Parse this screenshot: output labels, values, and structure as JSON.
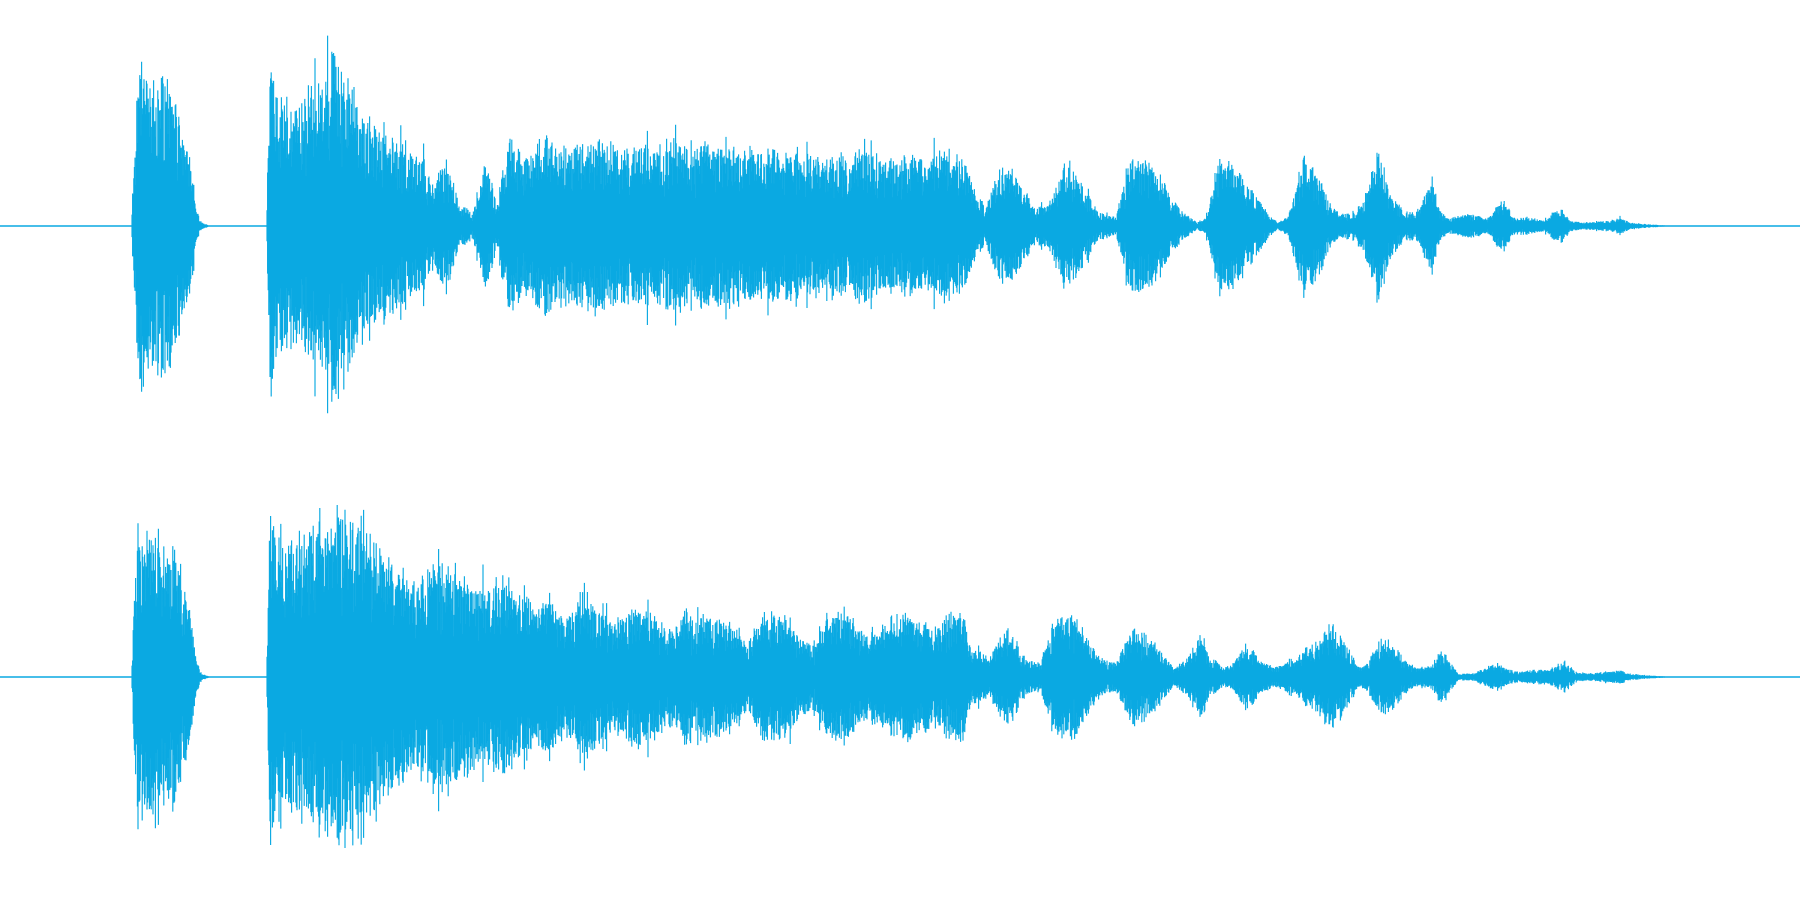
{
  "waveform": {
    "color": "#0aa9e2",
    "channels": [
      {
        "name": "channel-1",
        "envelope": [
          [
            0.0,
            0.0
          ],
          [
            0.073,
            0.0
          ],
          [
            0.0745,
            0.45
          ],
          [
            0.077,
            0.95
          ],
          [
            0.083,
            0.8
          ],
          [
            0.093,
            0.8
          ],
          [
            0.1,
            0.6
          ],
          [
            0.106,
            0.35
          ],
          [
            0.109,
            0.1
          ],
          [
            0.112,
            0.02
          ],
          [
            0.117,
            0.0
          ],
          [
            0.148,
            0.0
          ],
          [
            0.15,
            0.92
          ],
          [
            0.158,
            0.68
          ],
          [
            0.172,
            0.74
          ],
          [
            0.185,
            0.96
          ],
          [
            0.195,
            0.8
          ],
          [
            0.205,
            0.55
          ],
          [
            0.218,
            0.5
          ],
          [
            0.232,
            0.4
          ],
          [
            0.242,
            0.25
          ],
          [
            0.248,
            0.38
          ],
          [
            0.255,
            0.12
          ],
          [
            0.263,
            0.08
          ],
          [
            0.27,
            0.36
          ],
          [
            0.276,
            0.15
          ],
          [
            0.283,
            0.48
          ],
          [
            0.29,
            0.38
          ],
          [
            0.3,
            0.5
          ],
          [
            0.315,
            0.44
          ],
          [
            0.33,
            0.48
          ],
          [
            0.348,
            0.42
          ],
          [
            0.365,
            0.48
          ],
          [
            0.385,
            0.46
          ],
          [
            0.4,
            0.45
          ],
          [
            0.42,
            0.44
          ],
          [
            0.44,
            0.42
          ],
          [
            0.455,
            0.4
          ],
          [
            0.47,
            0.4
          ],
          [
            0.48,
            0.43
          ],
          [
            0.492,
            0.37
          ],
          [
            0.505,
            0.4
          ],
          [
            0.515,
            0.35
          ],
          [
            0.525,
            0.43
          ],
          [
            0.535,
            0.38
          ],
          [
            0.542,
            0.18
          ],
          [
            0.548,
            0.1
          ],
          [
            0.556,
            0.38
          ],
          [
            0.565,
            0.28
          ],
          [
            0.575,
            0.1
          ],
          [
            0.583,
            0.12
          ],
          [
            0.592,
            0.38
          ],
          [
            0.6,
            0.25
          ],
          [
            0.61,
            0.08
          ],
          [
            0.62,
            0.05
          ],
          [
            0.628,
            0.38
          ],
          [
            0.64,
            0.34
          ],
          [
            0.652,
            0.15
          ],
          [
            0.66,
            0.06
          ],
          [
            0.665,
            0.02
          ],
          [
            0.67,
            0.05
          ],
          [
            0.678,
            0.4
          ],
          [
            0.69,
            0.3
          ],
          [
            0.698,
            0.18
          ],
          [
            0.705,
            0.06
          ],
          [
            0.71,
            0.02
          ],
          [
            0.716,
            0.06
          ],
          [
            0.724,
            0.39
          ],
          [
            0.732,
            0.3
          ],
          [
            0.74,
            0.1
          ],
          [
            0.745,
            0.07
          ],
          [
            0.752,
            0.08
          ],
          [
            0.76,
            0.2
          ],
          [
            0.766,
            0.46
          ],
          [
            0.772,
            0.2
          ],
          [
            0.78,
            0.08
          ],
          [
            0.788,
            0.09
          ],
          [
            0.796,
            0.28
          ],
          [
            0.8,
            0.08
          ],
          [
            0.805,
            0.04
          ],
          [
            0.812,
            0.06
          ],
          [
            0.82,
            0.07
          ],
          [
            0.826,
            0.04
          ],
          [
            0.831,
            0.1
          ],
          [
            0.836,
            0.18
          ],
          [
            0.84,
            0.05
          ],
          [
            0.848,
            0.05
          ],
          [
            0.858,
            0.03
          ],
          [
            0.863,
            0.08
          ],
          [
            0.868,
            0.1
          ],
          [
            0.872,
            0.03
          ],
          [
            0.88,
            0.02
          ],
          [
            0.895,
            0.03
          ],
          [
            0.9,
            0.05
          ],
          [
            0.905,
            0.02
          ],
          [
            0.915,
            0.01
          ],
          [
            0.93,
            0.0
          ],
          [
            1.0,
            0.0
          ]
        ]
      },
      {
        "name": "channel-2",
        "envelope": [
          [
            0.0,
            0.0
          ],
          [
            0.073,
            0.0
          ],
          [
            0.0745,
            0.45
          ],
          [
            0.077,
            0.95
          ],
          [
            0.083,
            0.8
          ],
          [
            0.093,
            0.8
          ],
          [
            0.1,
            0.6
          ],
          [
            0.106,
            0.35
          ],
          [
            0.109,
            0.1
          ],
          [
            0.112,
            0.02
          ],
          [
            0.117,
            0.0
          ],
          [
            0.148,
            0.0
          ],
          [
            0.15,
            0.9
          ],
          [
            0.16,
            0.72
          ],
          [
            0.17,
            0.78
          ],
          [
            0.185,
            0.92
          ],
          [
            0.2,
            0.95
          ],
          [
            0.208,
            0.72
          ],
          [
            0.22,
            0.62
          ],
          [
            0.232,
            0.55
          ],
          [
            0.245,
            0.6
          ],
          [
            0.258,
            0.55
          ],
          [
            0.27,
            0.48
          ],
          [
            0.28,
            0.55
          ],
          [
            0.292,
            0.45
          ],
          [
            0.3,
            0.38
          ],
          [
            0.305,
            0.45
          ],
          [
            0.315,
            0.3
          ],
          [
            0.325,
            0.5
          ],
          [
            0.33,
            0.4
          ],
          [
            0.34,
            0.3
          ],
          [
            0.355,
            0.4
          ],
          [
            0.36,
            0.42
          ],
          [
            0.37,
            0.25
          ],
          [
            0.38,
            0.35
          ],
          [
            0.392,
            0.35
          ],
          [
            0.405,
            0.3
          ],
          [
            0.416,
            0.2
          ],
          [
            0.425,
            0.37
          ],
          [
            0.435,
            0.35
          ],
          [
            0.445,
            0.2
          ],
          [
            0.452,
            0.18
          ],
          [
            0.46,
            0.35
          ],
          [
            0.47,
            0.37
          ],
          [
            0.48,
            0.25
          ],
          [
            0.488,
            0.28
          ],
          [
            0.495,
            0.32
          ],
          [
            0.505,
            0.35
          ],
          [
            0.515,
            0.3
          ],
          [
            0.525,
            0.33
          ],
          [
            0.535,
            0.35
          ],
          [
            0.54,
            0.15
          ],
          [
            0.55,
            0.12
          ],
          [
            0.56,
            0.28
          ],
          [
            0.57,
            0.1
          ],
          [
            0.578,
            0.08
          ],
          [
            0.585,
            0.3
          ],
          [
            0.596,
            0.35
          ],
          [
            0.605,
            0.2
          ],
          [
            0.612,
            0.1
          ],
          [
            0.62,
            0.08
          ],
          [
            0.63,
            0.3
          ],
          [
            0.636,
            0.25
          ],
          [
            0.645,
            0.15
          ],
          [
            0.652,
            0.05
          ],
          [
            0.66,
            0.1
          ],
          [
            0.666,
            0.25
          ],
          [
            0.672,
            0.12
          ],
          [
            0.68,
            0.05
          ],
          [
            0.686,
            0.08
          ],
          [
            0.693,
            0.2
          ],
          [
            0.7,
            0.1
          ],
          [
            0.708,
            0.05
          ],
          [
            0.715,
            0.08
          ],
          [
            0.72,
            0.1
          ],
          [
            0.725,
            0.15
          ],
          [
            0.732,
            0.2
          ],
          [
            0.74,
            0.3
          ],
          [
            0.748,
            0.18
          ],
          [
            0.755,
            0.05
          ],
          [
            0.76,
            0.08
          ],
          [
            0.766,
            0.2
          ],
          [
            0.772,
            0.22
          ],
          [
            0.78,
            0.1
          ],
          [
            0.787,
            0.05
          ],
          [
            0.795,
            0.06
          ],
          [
            0.8,
            0.15
          ],
          [
            0.805,
            0.1
          ],
          [
            0.81,
            0.02
          ],
          [
            0.818,
            0.02
          ],
          [
            0.825,
            0.05
          ],
          [
            0.832,
            0.08
          ],
          [
            0.838,
            0.04
          ],
          [
            0.845,
            0.03
          ],
          [
            0.855,
            0.04
          ],
          [
            0.86,
            0.04
          ],
          [
            0.866,
            0.07
          ],
          [
            0.87,
            0.09
          ],
          [
            0.875,
            0.03
          ],
          [
            0.882,
            0.02
          ],
          [
            0.895,
            0.03
          ],
          [
            0.9,
            0.04
          ],
          [
            0.905,
            0.02
          ],
          [
            0.915,
            0.01
          ],
          [
            0.93,
            0.0
          ],
          [
            1.0,
            0.0
          ]
        ]
      }
    ]
  }
}
